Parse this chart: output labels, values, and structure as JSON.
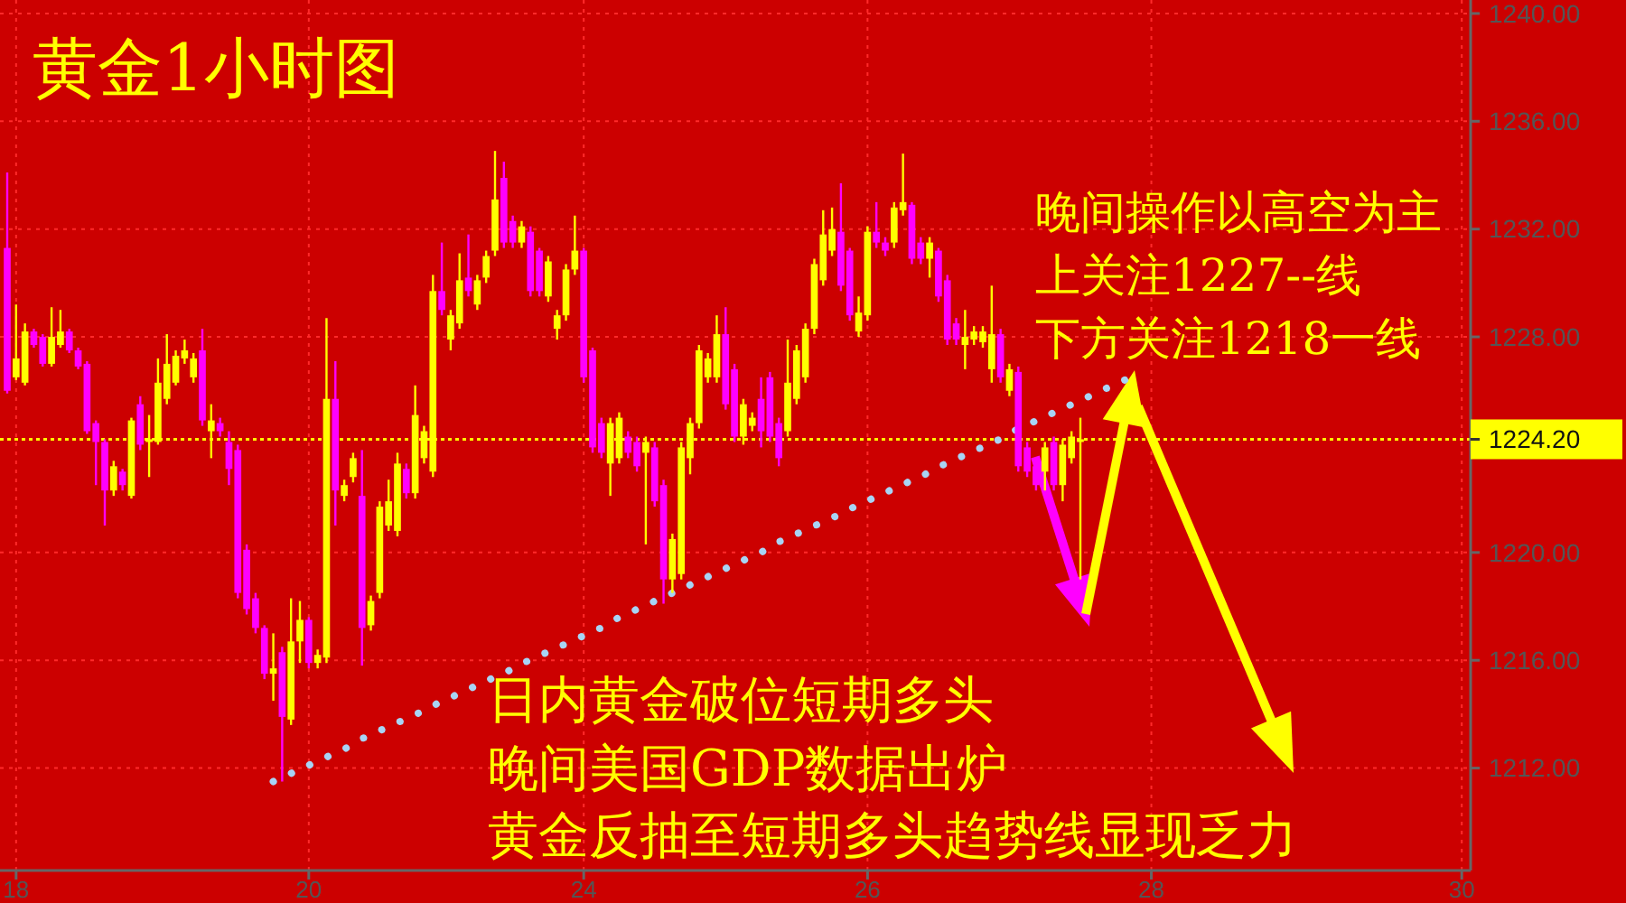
{
  "chart_data": {
    "type": "candlestick",
    "title": "黄金1小时图",
    "annotations": [
      "晚间操作以高空为主",
      "上关注1227--线",
      "下方关注1218一线",
      "日内黄金破位短期多头",
      "晚间美国GDP数据出炉",
      "黄金反抽至短期多头趋势线显现乏力"
    ],
    "categories": [
      null,
      "18",
      null,
      null,
      null,
      null,
      null,
      null,
      null,
      null,
      null,
      null,
      null,
      null,
      null,
      null,
      null,
      null,
      null,
      null,
      null,
      null,
      null,
      null,
      null,
      null,
      null,
      null,
      null,
      null,
      null,
      null,
      null,
      null,
      "20",
      null,
      null,
      null,
      null,
      null,
      null,
      null,
      null,
      null,
      null,
      null,
      null,
      null,
      null,
      null,
      null,
      null,
      null,
      null,
      null,
      null,
      null,
      null,
      null,
      null,
      null,
      null,
      null,
      null,
      null,
      "24",
      null,
      null,
      null,
      null,
      null,
      null,
      null,
      null,
      null,
      null,
      null,
      null,
      null,
      null,
      null,
      null,
      null,
      null,
      null,
      null,
      null,
      null,
      null,
      null,
      null,
      null,
      null,
      null,
      null,
      null,
      null,
      "26",
      null,
      null,
      null,
      null,
      null,
      null,
      null,
      null,
      null,
      null,
      null,
      null,
      null,
      null,
      null,
      null,
      null,
      null,
      null,
      null,
      null,
      null,
      null,
      null,
      null,
      null,
      null,
      null,
      null,
      null,
      null,
      "28",
      null,
      null,
      null,
      null,
      null,
      null,
      null,
      null,
      null,
      null,
      null,
      null,
      null,
      null,
      null,
      null,
      null,
      null,
      null,
      null,
      null,
      null,
      null,
      null,
      null,
      null,
      null,
      null,
      null,
      null,
      null,
      null,
      null,
      null,
      "30",
      null
    ],
    "ylim": [
      1208.2,
      1240.5
    ],
    "yticks": [
      {
        "value": 1212,
        "label": "1212.00"
      },
      {
        "value": 1216,
        "label": "1216.00"
      },
      {
        "value": 1220,
        "label": "1220.00"
      },
      {
        "value": 1228,
        "label": "1228.00"
      },
      {
        "value": 1232,
        "label": "1232.00"
      },
      {
        "value": 1236,
        "label": "1236.00"
      },
      {
        "value": 1240,
        "label": "1240.00"
      }
    ],
    "grid": true,
    "ref_lines": [
      {
        "axis": "y",
        "value": 1224.2,
        "label": "1224.20",
        "color": "#ffff00",
        "line_style": "dotted"
      }
    ],
    "series": [
      {
        "ohlc": [
          [
            1231.3,
            1234.1,
            1225.9,
            1226.0
          ],
          [
            1226.5,
            1229.2,
            1226.4,
            1227.2
          ],
          [
            1226.3,
            1228.5,
            1226.2,
            1228.2
          ],
          [
            1228.2,
            1228.3,
            1227.6,
            1227.7
          ],
          [
            1228.0,
            1228.1,
            1226.9,
            1227.0
          ],
          [
            1227.0,
            1229.1,
            1226.9,
            1228.0
          ],
          [
            1227.7,
            1229.0,
            1227.6,
            1228.2
          ],
          [
            1228.2,
            1228.3,
            1227.4,
            1227.5
          ],
          [
            1227.5,
            1227.6,
            1226.8,
            1226.9
          ],
          [
            1227.0,
            1227.1,
            1224.4,
            1224.5
          ],
          [
            1224.8,
            1224.9,
            1222.5,
            1224.1
          ],
          [
            1224.1,
            1224.2,
            1221.0,
            1222.3
          ],
          [
            1222.3,
            1223.4,
            1222.1,
            1223.2
          ],
          [
            1223.0,
            1223.1,
            1222.3,
            1222.5
          ],
          [
            1222.1,
            1225.0,
            1222.0,
            1224.9
          ],
          [
            1225.5,
            1225.8,
            1223.8,
            1224.0
          ],
          [
            1224.1,
            1225.1,
            1222.8,
            1224.2
          ],
          [
            1224.1,
            1227.2,
            1224.0,
            1226.3
          ],
          [
            1225.7,
            1228.1,
            1225.5,
            1227.0
          ],
          [
            1226.3,
            1227.5,
            1226.2,
            1227.3
          ],
          [
            1227.2,
            1227.9,
            1227.0,
            1227.5
          ],
          [
            1226.5,
            1227.4,
            1226.3,
            1227.2
          ],
          [
            1227.5,
            1228.3,
            1224.7,
            1224.9
          ],
          [
            1224.5,
            1225.5,
            1223.5,
            1224.9
          ],
          [
            1224.8,
            1225.0,
            1224.3,
            1224.5
          ],
          [
            1224.1,
            1224.5,
            1222.5,
            1223.1
          ],
          [
            1223.8,
            1224.0,
            1218.3,
            1218.5
          ],
          [
            1220.1,
            1220.3,
            1217.7,
            1217.9
          ],
          [
            1218.3,
            1218.5,
            1217.0,
            1217.2
          ],
          [
            1217.2,
            1217.3,
            1215.3,
            1215.5
          ],
          [
            1215.5,
            1217.0,
            1214.5,
            1215.7
          ],
          [
            1216.3,
            1216.5,
            1211.5,
            1213.9
          ],
          [
            1213.8,
            1218.3,
            1213.6,
            1216.7
          ],
          [
            1216.7,
            1218.2,
            1215.9,
            1217.5
          ],
          [
            1217.5,
            1217.6,
            1215.7,
            1215.9
          ],
          [
            1215.9,
            1216.4,
            1215.7,
            1216.2
          ],
          [
            1216.1,
            1228.7,
            1215.9,
            1225.7
          ],
          [
            1225.7,
            1227.1,
            1221.0,
            1222.3
          ],
          [
            1222.1,
            1222.7,
            1221.9,
            1222.5
          ],
          [
            1222.8,
            1223.7,
            1222.6,
            1223.5
          ],
          [
            1222.1,
            1223.8,
            1215.8,
            1217.2
          ],
          [
            1217.3,
            1218.4,
            1217.1,
            1218.2
          ],
          [
            1218.5,
            1221.9,
            1218.3,
            1221.7
          ],
          [
            1221.0,
            1222.7,
            1220.8,
            1221.9
          ],
          [
            1220.8,
            1223.7,
            1220.6,
            1223.3
          ],
          [
            1223.1,
            1223.3,
            1222.0,
            1222.2
          ],
          [
            1222.2,
            1226.2,
            1222.0,
            1225.1
          ],
          [
            1223.5,
            1224.7,
            1223.3,
            1224.5
          ],
          [
            1223.0,
            1230.3,
            1222.8,
            1229.7
          ],
          [
            1229.7,
            1231.5,
            1228.8,
            1229.0
          ],
          [
            1227.9,
            1229.0,
            1227.5,
            1228.8
          ],
          [
            1228.5,
            1231.1,
            1228.3,
            1230.1
          ],
          [
            1230.2,
            1231.8,
            1229.5,
            1229.7
          ],
          [
            1229.2,
            1230.3,
            1229.0,
            1230.1
          ],
          [
            1230.2,
            1231.2,
            1230.0,
            1231.0
          ],
          [
            1231.2,
            1234.9,
            1231.0,
            1233.1
          ],
          [
            1233.9,
            1234.5,
            1231.3,
            1231.5
          ],
          [
            1232.3,
            1232.5,
            1231.3,
            1231.5
          ],
          [
            1231.5,
            1232.3,
            1231.3,
            1232.1
          ],
          [
            1231.9,
            1232.1,
            1229.5,
            1229.7
          ],
          [
            1231.2,
            1231.3,
            1229.5,
            1229.7
          ],
          [
            1229.5,
            1231.0,
            1229.3,
            1230.8
          ],
          [
            1228.3,
            1229.0,
            1227.9,
            1228.8
          ],
          [
            1228.8,
            1230.7,
            1228.6,
            1230.5
          ],
          [
            1230.5,
            1232.5,
            1230.3,
            1231.2
          ],
          [
            1231.2,
            1231.3,
            1226.3,
            1226.5
          ],
          [
            1227.5,
            1227.6,
            1223.7,
            1223.9
          ],
          [
            1224.8,
            1225.0,
            1223.5,
            1223.7
          ],
          [
            1223.3,
            1225.0,
            1222.1,
            1224.8
          ],
          [
            1223.5,
            1225.2,
            1223.3,
            1225.0
          ],
          [
            1224.3,
            1224.5,
            1223.5,
            1223.7
          ],
          [
            1224.1,
            1224.3,
            1223.0,
            1223.2
          ],
          [
            1223.7,
            1224.3,
            1220.3,
            1224.1
          ],
          [
            1223.9,
            1224.1,
            1221.7,
            1221.9
          ],
          [
            1222.5,
            1222.7,
            1218.1,
            1219.0
          ],
          [
            1219.0,
            1220.7,
            1218.5,
            1220.5
          ],
          [
            1219.2,
            1224.1,
            1219.0,
            1223.9
          ],
          [
            1223.5,
            1225.0,
            1222.9,
            1224.8
          ],
          [
            1224.8,
            1227.7,
            1224.6,
            1227.5
          ],
          [
            1226.5,
            1227.4,
            1226.3,
            1227.2
          ],
          [
            1226.5,
            1228.8,
            1226.3,
            1228.1
          ],
          [
            1228.1,
            1229.1,
            1225.3,
            1225.5
          ],
          [
            1226.8,
            1227.0,
            1224.1,
            1224.3
          ],
          [
            1224.3,
            1225.7,
            1224.0,
            1225.5
          ],
          [
            1224.7,
            1225.2,
            1224.5,
            1225.0
          ],
          [
            1225.7,
            1226.5,
            1223.9,
            1224.5
          ],
          [
            1226.5,
            1226.7,
            1224.1,
            1224.3
          ],
          [
            1224.8,
            1225.0,
            1223.2,
            1223.5
          ],
          [
            1224.5,
            1227.9,
            1224.3,
            1226.3
          ],
          [
            1225.7,
            1227.7,
            1225.5,
            1227.5
          ],
          [
            1226.5,
            1228.5,
            1226.3,
            1228.3
          ],
          [
            1228.3,
            1230.9,
            1228.1,
            1230.7
          ],
          [
            1230.1,
            1232.7,
            1229.9,
            1231.8
          ],
          [
            1231.2,
            1232.8,
            1231.0,
            1232.0
          ],
          [
            1231.9,
            1233.7,
            1229.7,
            1229.9
          ],
          [
            1231.2,
            1231.3,
            1228.6,
            1228.8
          ],
          [
            1228.2,
            1229.5,
            1228.0,
            1228.9
          ],
          [
            1228.8,
            1232.1,
            1228.6,
            1231.9
          ],
          [
            1231.9,
            1233.0,
            1231.3,
            1231.5
          ],
          [
            1231.5,
            1231.7,
            1231.0,
            1231.2
          ],
          [
            1231.5,
            1233.0,
            1231.3,
            1232.8
          ],
          [
            1232.7,
            1234.8,
            1232.5,
            1233.0
          ],
          [
            1232.9,
            1233.0,
            1230.7,
            1230.9
          ],
          [
            1231.5,
            1231.7,
            1230.7,
            1230.9
          ],
          [
            1230.9,
            1231.7,
            1230.2,
            1231.5
          ],
          [
            1231.2,
            1231.3,
            1229.3,
            1229.5
          ],
          [
            1230.1,
            1230.3,
            1227.7,
            1227.9
          ],
          [
            1228.5,
            1228.7,
            1227.7,
            1227.9
          ],
          [
            1227.7,
            1229.0,
            1226.8,
            1228.0
          ],
          [
            1227.9,
            1228.4,
            1227.7,
            1228.2
          ],
          [
            1227.8,
            1228.4,
            1227.6,
            1228.2
          ],
          [
            1226.8,
            1229.9,
            1226.3,
            1228.1
          ],
          [
            1228.1,
            1228.3,
            1226.3,
            1226.5
          ],
          [
            1226.0,
            1227.0,
            1225.8,
            1226.8
          ],
          [
            1226.7,
            1226.9,
            1223.0,
            1223.2
          ],
          [
            1223.9,
            1224.1,
            1222.8,
            1223.0
          ],
          [
            1223.2,
            1223.4,
            1222.3,
            1222.5
          ],
          [
            1223.0,
            1224.1,
            1222.3,
            1223.9
          ],
          [
            1224.1,
            1224.3,
            1222.3,
            1222.5
          ],
          [
            1222.5,
            1224.2,
            1221.9,
            1224.0
          ],
          [
            1223.5,
            1224.5,
            1223.3,
            1224.3
          ],
          [
            1224.1,
            1225.0,
            1219.0,
            1224.2
          ],
          null,
          null,
          null,
          null,
          null,
          null,
          null,
          null,
          null,
          null,
          null,
          null,
          null,
          null,
          null,
          null,
          null,
          null,
          null,
          null,
          null,
          null,
          null,
          null,
          null,
          null,
          null,
          null,
          null,
          null,
          null,
          null,
          null,
          null,
          null,
          null,
          null,
          null,
          null,
          null,
          null,
          null,
          null,
          null
        ],
        "colors": [
          "#ff00ff",
          "#ffff00",
          "#ffff00",
          "#ff00ff",
          "#ff00ff",
          "#ffff00",
          "#ffff00",
          "#ff00ff",
          "#ff00ff",
          "#ff00ff",
          "#ff00ff",
          "#ff00ff",
          "#ffff00",
          "#ff00ff",
          "#ffff00",
          "#ff00ff",
          "#ffff00",
          "#ffff00",
          "#ffff00",
          "#ffff00",
          "#ffff00",
          "#ffff00",
          "#ff00ff",
          "#ffff00",
          "#ff00ff",
          "#ff00ff",
          "#ff00ff",
          "#ff00ff",
          "#ff00ff",
          "#ff00ff",
          "#ffff00",
          "#ff00ff",
          "#ffff00",
          "#ffff00",
          "#ff00ff",
          "#ffff00",
          "#ffff00",
          "#ff00ff",
          "#ffff00",
          "#ffff00",
          "#ff00ff",
          "#ffff00",
          "#ffff00",
          "#ffff00",
          "#ffff00",
          "#ff00ff",
          "#ffff00",
          "#ffff00",
          "#ffff00",
          "#ff00ff",
          "#ffff00",
          "#ffff00",
          "#ff00ff",
          "#ffff00",
          "#ffff00",
          "#ffff00",
          "#ff00ff",
          "#ff00ff",
          "#ffff00",
          "#ff00ff",
          "#ff00ff",
          "#ffff00",
          "#ffff00",
          "#ffff00",
          "#ffff00",
          "#ff00ff",
          "#ff00ff",
          "#ff00ff",
          "#ffff00",
          "#ffff00",
          "#ff00ff",
          "#ff00ff",
          "#ffff00",
          "#ff00ff",
          "#ff00ff",
          "#ffff00",
          "#ffff00",
          "#ffff00",
          "#ffff00",
          "#ffff00",
          "#ffff00",
          "#ff00ff",
          "#ff00ff",
          "#ffff00",
          "#ffff00",
          "#ff00ff",
          "#ff00ff",
          "#ff00ff",
          "#ffff00",
          "#ffff00",
          "#ffff00",
          "#ffff00",
          "#ffff00",
          "#ffff00",
          "#ff00ff",
          "#ff00ff",
          "#ffff00",
          "#ffff00",
          "#ff00ff",
          "#ff00ff",
          "#ffff00",
          "#ffff00",
          "#ff00ff",
          "#ff00ff",
          "#ffff00",
          "#ff00ff",
          "#ff00ff",
          "#ff00ff",
          "#ffff00",
          "#ffff00",
          "#ffff00",
          "#ffff00",
          "#ff00ff",
          "#ffff00",
          "#ff00ff",
          "#ff00ff",
          "#ff00ff",
          "#ffff00",
          "#ff00ff",
          "#ffff00",
          "#ffff00",
          "#ffff00",
          null,
          null,
          null,
          null,
          null,
          null,
          null,
          null,
          null,
          null,
          null,
          null,
          null,
          null,
          null,
          null,
          null,
          null,
          null,
          null,
          null,
          null,
          null,
          null,
          null,
          null,
          null,
          null,
          null,
          null,
          null,
          null,
          null,
          null,
          null,
          null,
          null,
          null,
          null,
          null,
          null,
          null,
          null,
          null
        ]
      },
      {
        "type": "line",
        "color": "#a8d4f5",
        "line_style": "dotted",
        "values": [
          null,
          null,
          null,
          null,
          null,
          null,
          null,
          null,
          null,
          null,
          null,
          null,
          null,
          null,
          null,
          null,
          null,
          null,
          null,
          null,
          null,
          null,
          null,
          null,
          null,
          null,
          null,
          null,
          null,
          null,
          1211.5,
          1211.7,
          1211.8,
          1212.0,
          1212.1,
          1212.3,
          1212.4,
          1212.6,
          1212.7,
          1212.9,
          1213.1,
          1213.2,
          1213.4,
          1213.5,
          1213.7,
          1213.8,
          1214.0,
          1214.1,
          1214.3,
          1214.5,
          1214.6,
          1214.8,
          1214.9,
          1215.1,
          1215.2,
          1215.4,
          1215.5,
          1215.7,
          1215.9,
          1216.0,
          1216.2,
          1216.3,
          1216.5,
          1216.6,
          1216.8,
          1216.9,
          1217.1,
          1217.2,
          1217.4,
          1217.6,
          1217.7,
          1217.9,
          1218.0,
          1218.2,
          1218.3,
          1218.5,
          1218.6,
          1218.8,
          1219.0,
          1219.1,
          1219.3,
          1219.4,
          1219.6,
          1219.7,
          1219.9,
          1220.0,
          1220.2,
          1220.4,
          1220.5,
          1220.7,
          1220.8,
          1221.0,
          1221.1,
          1221.3,
          1221.4,
          1221.6,
          1221.8,
          1221.9,
          1222.1,
          1222.2,
          1222.4,
          1222.5,
          1222.7,
          1222.8,
          1223.0,
          1223.2,
          1223.3,
          1223.5,
          1223.6,
          1223.8,
          1223.9,
          1224.1,
          1224.2,
          1224.4,
          1224.6,
          1224.7,
          1224.9,
          1225.0,
          1225.2,
          1225.3,
          1225.5,
          1225.6,
          1225.8,
          1226.0,
          1226.1,
          1226.3,
          1226.4,
          null,
          null,
          null,
          null,
          null,
          null,
          null,
          null,
          null,
          null,
          null,
          null,
          null,
          null,
          null,
          null,
          null,
          null,
          null,
          null,
          null,
          null,
          null,
          null,
          null,
          null,
          null,
          null,
          null,
          null,
          null,
          null,
          null,
          null,
          null,
          null,
          null,
          null,
          null
        ]
      }
    ]
  }
}
